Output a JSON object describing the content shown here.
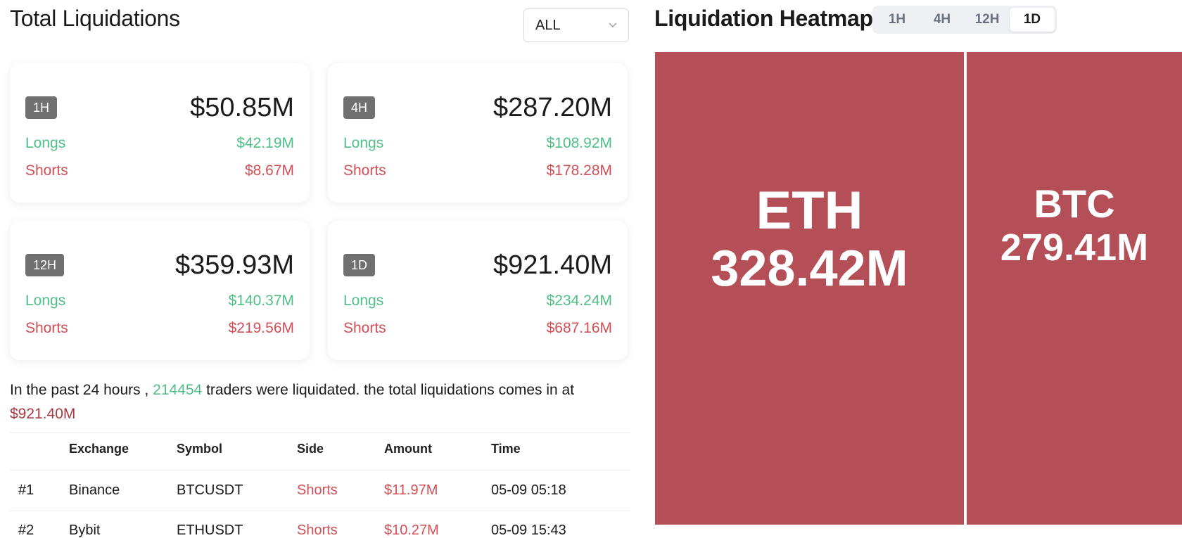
{
  "left": {
    "title": "Total Liquidations",
    "filter": {
      "selected": "ALL",
      "icon": "chevron-down-icon"
    },
    "cards": [
      {
        "period": "1H",
        "total": "$50.85M",
        "longs_label": "Longs",
        "longs": "$42.19M",
        "shorts_label": "Shorts",
        "shorts": "$8.67M"
      },
      {
        "period": "4H",
        "total": "$287.20M",
        "longs_label": "Longs",
        "longs": "$108.92M",
        "shorts_label": "Shorts",
        "shorts": "$178.28M"
      },
      {
        "period": "12H",
        "total": "$359.93M",
        "longs_label": "Longs",
        "longs": "$140.37M",
        "shorts_label": "Shorts",
        "shorts": "$219.56M"
      },
      {
        "period": "1D",
        "total": "$921.40M",
        "longs_label": "Longs",
        "longs": "$234.24M",
        "shorts_label": "Shorts",
        "shorts": "$687.16M"
      }
    ],
    "summary": {
      "prefix": "In the past 24 hours ,",
      "count": "214454",
      "middle": "traders were liquidated. the total liquidations comes in at",
      "total": "$921.40M"
    },
    "table": {
      "columns": [
        "Exchange",
        "Symbol",
        "Side",
        "Amount",
        "Time"
      ],
      "rows": [
        {
          "rank": "#1",
          "exchange": "Binance",
          "symbol": "BTCUSDT",
          "side": "Shorts",
          "amount": "$11.97M",
          "time": "05-09 05:18"
        },
        {
          "rank": "#2",
          "exchange": "Bybit",
          "symbol": "ETHUSDT",
          "side": "Shorts",
          "amount": "$10.27M",
          "time": "05-09 15:43"
        }
      ]
    }
  },
  "right": {
    "title": "Liquidation Heatmap",
    "tabs": [
      "1H",
      "4H",
      "12H",
      "1D"
    ],
    "active_tab": "1D",
    "cell_color": "#b44f57",
    "cells": [
      {
        "symbol": "ETH",
        "value": "328.42M"
      },
      {
        "symbol": "BTC",
        "value": "279.41M"
      }
    ]
  },
  "colors": {
    "long": "#4fbf86",
    "short": "#d14f55",
    "tag_bg": "#707070"
  }
}
